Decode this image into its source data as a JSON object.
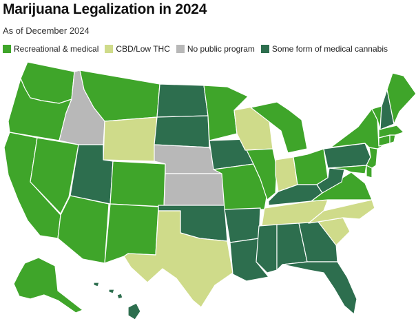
{
  "title": "Marijuana Legalization in 2024",
  "subtitle": "As of December 2024",
  "legend": [
    {
      "key": "rec",
      "label": "Recreational & medical",
      "color": "#3fa52a"
    },
    {
      "key": "cbd",
      "label": "CBD/Low THC",
      "color": "#cfdb8a"
    },
    {
      "key": "none",
      "label": "No public program",
      "color": "#b8b8b8"
    },
    {
      "key": "med",
      "label": "Some form of medical cannabis",
      "color": "#2d6e4e"
    }
  ],
  "states": {
    "WA": "rec",
    "OR": "rec",
    "CA": "rec",
    "NV": "rec",
    "ID": "none",
    "MT": "rec",
    "WY": "cbd",
    "UT": "med",
    "AZ": "rec",
    "CO": "rec",
    "NM": "rec",
    "ND": "med",
    "SD": "med",
    "NE": "none",
    "KS": "none",
    "OK": "med",
    "TX": "cbd",
    "MN": "rec",
    "IA": "med",
    "MO": "rec",
    "AR": "med",
    "LA": "med",
    "WI": "cbd",
    "IL": "rec",
    "MI": "rec",
    "IN": "cbd",
    "OH": "rec",
    "KY": "med",
    "TN": "cbd",
    "MS": "med",
    "AL": "med",
    "GA": "med",
    "FL": "med",
    "SC": "cbd",
    "NC": "cbd",
    "VA": "rec",
    "WV": "med",
    "PA": "med",
    "NY": "rec",
    "VT": "rec",
    "NH": "med",
    "ME": "rec",
    "MA": "rec",
    "RI": "rec",
    "CT": "rec",
    "NJ": "rec",
    "DE": "rec",
    "MD": "rec",
    "AK": "rec",
    "HI": "med"
  }
}
